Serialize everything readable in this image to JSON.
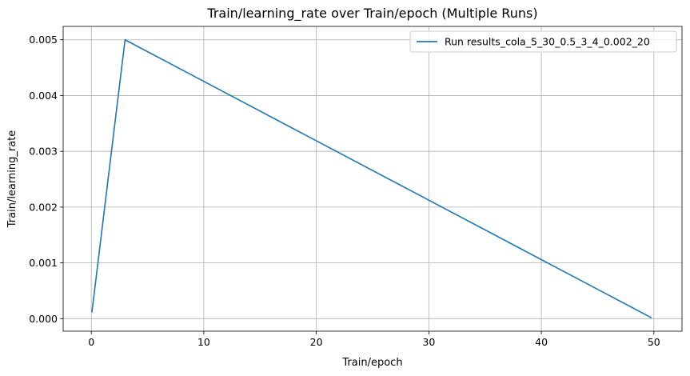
{
  "chart_data": {
    "type": "line",
    "title": "Train/learning_rate over Train/epoch (Multiple Runs)",
    "xlabel": "Train/epoch",
    "ylabel": "Train/learning_rate",
    "xlim": [
      -2.5,
      52.5
    ],
    "ylim": [
      -0.000225,
      0.00524
    ],
    "xticks": [
      0,
      10,
      20,
      30,
      40,
      50
    ],
    "xtick_labels": [
      "0",
      "10",
      "20",
      "30",
      "40",
      "50"
    ],
    "yticks": [
      0,
      0.001,
      0.002,
      0.003,
      0.004,
      0.005
    ],
    "ytick_labels": [
      "0.000",
      "0.001",
      "0.002",
      "0.003",
      "0.004",
      "0.005"
    ],
    "grid": true,
    "legend_position": "top-right",
    "series": [
      {
        "name": "Run results_cola_5_30_0.5_3_4_0.002_20",
        "color": "#1f77b4",
        "x": [
          0.06,
          3.0,
          49.75
        ],
        "y": [
          0.000125,
          0.005,
          2e-05
        ]
      }
    ]
  }
}
